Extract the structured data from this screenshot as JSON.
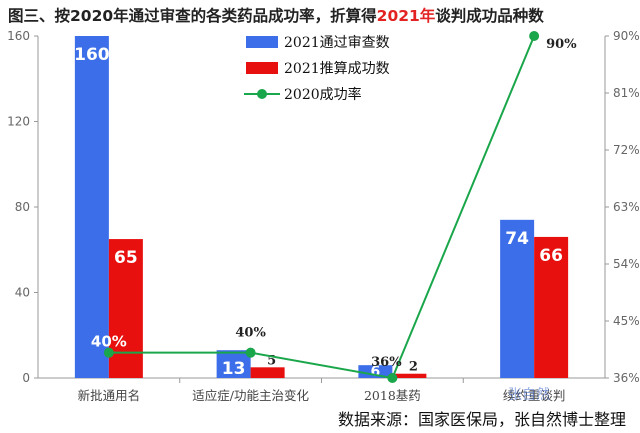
{
  "title_parts": {
    "prefix": "图三、按2020年通过审查的各类药品成功率，折算得",
    "highlight": "2021年",
    "suffix": "谈判成功品种数"
  },
  "source": "数据来源：国家医保局，张自然博士整理",
  "watermark": "张自然",
  "colors": {
    "reviewed": "#3b6ee8",
    "success": "#e8100f",
    "rate": "#1aa64a",
    "title_highlight": "#e32222"
  },
  "chart_data": {
    "type": "bar",
    "categories": [
      "新批通用名",
      "适应症/功能主治变化",
      "2018基药",
      "续约重谈判"
    ],
    "series": [
      {
        "name": "2021通过审查数",
        "type": "bar",
        "axis": "left",
        "values": [
          160,
          13,
          6,
          74
        ]
      },
      {
        "name": "2021推算成功数",
        "type": "bar",
        "axis": "left",
        "values": [
          65,
          5,
          2,
          66
        ]
      },
      {
        "name": "2020成功率",
        "type": "line",
        "axis": "right",
        "values": [
          40,
          40,
          36,
          90
        ],
        "labels": [
          "40%",
          "40%",
          "36%",
          "90%"
        ]
      }
    ],
    "ylim": [
      0,
      160
    ],
    "yticks": [
      "0",
      "40",
      "80",
      "120",
      "160"
    ],
    "y2lim": [
      36,
      90
    ],
    "y2ticks": [
      "36%",
      "45%",
      "54%",
      "63%",
      "72%",
      "81%",
      "90%"
    ],
    "legend": "top-center"
  }
}
